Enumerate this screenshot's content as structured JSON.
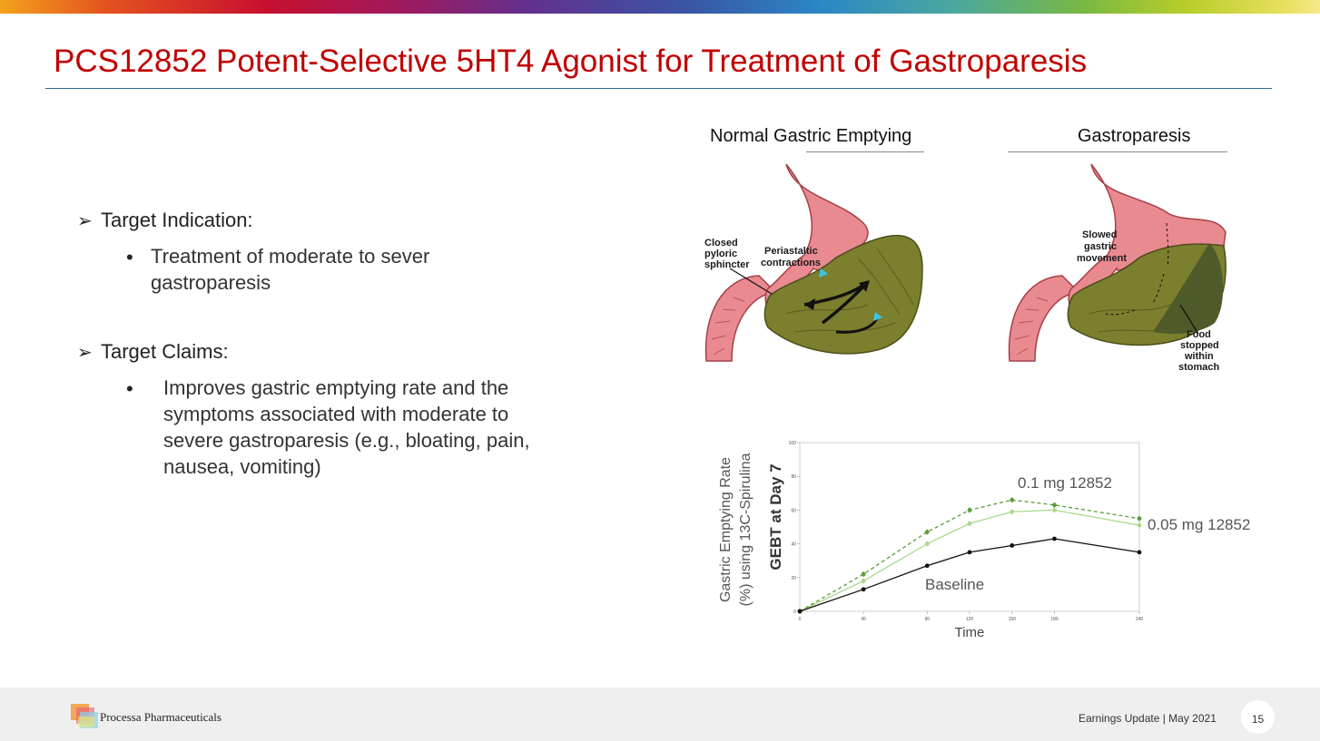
{
  "slide": {
    "title": "PCS12852 Potent-Selective 5HT4 Agonist for Treatment of Gastroparesis"
  },
  "bullets": [
    {
      "heading": "Target Indication:",
      "items": [
        "Treatment of moderate to sever gastroparesis"
      ]
    },
    {
      "heading": "Target Claims:",
      "items": [
        "Improves gastric emptying rate and the symptoms associated with moderate to severe gastroparesis (e.g., bloating, pain, nausea, vomiting)"
      ]
    }
  ],
  "illustrations": {
    "normal": {
      "label": "Normal Gastric Emptying",
      "annotations": [
        "Closed pyloric sphincter",
        "Periastaltic contractions"
      ]
    },
    "gastroparesis": {
      "label": "Gastroparesis",
      "annotations": [
        "Slowed gastric movement",
        "Food stopped within stomach"
      ]
    }
  },
  "chart_data": {
    "type": "line",
    "ylabel_outer": "Gastric Emptying Rate (%) using 13C-Spirulina",
    "ylabel_inner": "GEBT at Day 7",
    "xlabel": "Time",
    "ylim": [
      0,
      100
    ],
    "xlim": [
      0,
      240
    ],
    "y_ticks": [
      0,
      20,
      40,
      60,
      80,
      100
    ],
    "x_ticks": [
      0,
      45,
      90,
      120,
      150,
      180,
      240
    ],
    "grid": false,
    "series": [
      {
        "name": "0.1 mg 12852",
        "color": "#5a9e3a",
        "dashed": true,
        "x": [
          0,
          45,
          90,
          120,
          150,
          180,
          240
        ],
        "y": [
          0,
          22,
          47,
          60,
          66,
          63,
          55
        ]
      },
      {
        "name": "0.05 mg 12852",
        "color": "#a9d98e",
        "dashed": false,
        "x": [
          0,
          45,
          90,
          120,
          150,
          180,
          240
        ],
        "y": [
          0,
          18,
          40,
          52,
          59,
          60,
          51
        ]
      },
      {
        "name": "Baseline",
        "color": "#111111",
        "dashed": false,
        "x": [
          0,
          45,
          90,
          120,
          150,
          180,
          240
        ],
        "y": [
          0,
          13,
          27,
          35,
          39,
          43,
          35
        ]
      }
    ]
  },
  "footer": {
    "company": "Processa Pharmaceuticals",
    "event": "Earnings Update | May 2021",
    "page": "15"
  }
}
